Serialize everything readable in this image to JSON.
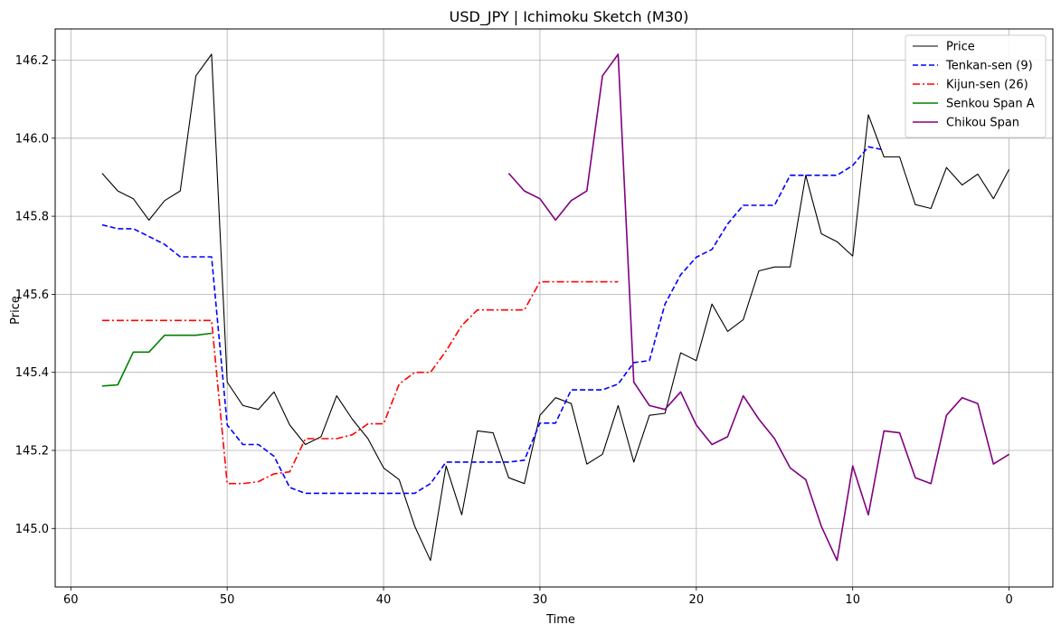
{
  "chart_data": {
    "type": "line",
    "title": "USD_JPY | Ichimoku Sketch (M30)",
    "xlabel": "Time",
    "ylabel": "Price",
    "xlim": [
      61,
      -2.8
    ],
    "ylim": [
      144.85,
      146.28
    ],
    "x_reversed": true,
    "grid": true,
    "legend_position": "top-right",
    "x_ticks": [
      60,
      50,
      40,
      30,
      20,
      10,
      0
    ],
    "y_ticks": [
      145.0,
      145.2,
      145.4,
      145.6,
      145.8,
      146.0,
      146.2
    ],
    "series": [
      {
        "name": "Price",
        "color": "#000000",
        "dash": "solid",
        "x": [
          58,
          57,
          56,
          55,
          54,
          53,
          52,
          51,
          50,
          49,
          48,
          47,
          46,
          45,
          44,
          43,
          42,
          41,
          40,
          39,
          38,
          37,
          36,
          35,
          34,
          33,
          32,
          31,
          30,
          29,
          28,
          27,
          26,
          25,
          24,
          23,
          22,
          21,
          20,
          19,
          18,
          17,
          16,
          15,
          14,
          13,
          12,
          11,
          10,
          9,
          8,
          7,
          6,
          5,
          4,
          3,
          2,
          1,
          0
        ],
        "values": [
          145.91,
          145.865,
          145.845,
          145.79,
          145.84,
          145.865,
          146.16,
          146.215,
          145.375,
          145.315,
          145.305,
          145.35,
          145.265,
          145.215,
          145.235,
          145.34,
          145.28,
          145.23,
          145.155,
          145.125,
          145.005,
          144.918,
          145.16,
          145.035,
          145.25,
          145.245,
          145.13,
          145.115,
          145.29,
          145.335,
          145.32,
          145.165,
          145.19,
          145.315,
          145.17,
          145.29,
          145.295,
          145.45,
          145.43,
          145.575,
          145.505,
          145.535,
          145.66,
          145.67,
          145.67,
          145.905,
          145.755,
          145.735,
          145.698,
          146.06,
          145.952,
          145.952,
          145.83,
          145.82,
          145.925,
          145.88,
          145.908,
          145.845,
          145.92
        ]
      },
      {
        "name": "Tenkan-sen (9)",
        "color": "#0000ff",
        "dash": "dashed",
        "x": [
          58,
          57,
          56,
          55,
          54,
          53,
          52,
          51,
          50,
          49,
          48,
          47,
          46,
          45,
          44,
          43,
          42,
          41,
          40,
          39,
          38,
          37,
          36,
          35,
          34,
          33,
          32,
          31,
          30,
          29,
          28,
          27,
          26,
          25,
          24,
          23,
          22,
          21,
          20,
          19,
          18,
          17,
          16,
          15,
          14,
          13,
          12,
          11,
          10,
          9,
          8
        ],
        "values": [
          145.778,
          145.768,
          145.768,
          145.748,
          145.728,
          145.696,
          145.696,
          145.696,
          145.265,
          145.215,
          145.215,
          145.185,
          145.105,
          145.09,
          145.09,
          145.09,
          145.09,
          145.09,
          145.09,
          145.09,
          145.09,
          145.115,
          145.17,
          145.17,
          145.17,
          145.17,
          145.17,
          145.175,
          145.27,
          145.27,
          145.355,
          145.355,
          145.355,
          145.37,
          145.425,
          145.43,
          145.575,
          145.65,
          145.695,
          145.715,
          145.78,
          145.828,
          145.828,
          145.828,
          145.905,
          145.905,
          145.905,
          145.905,
          145.93,
          145.978,
          145.97
        ]
      },
      {
        "name": "Kijun-sen (26)",
        "color": "#ff0000",
        "dash": "dashdot",
        "x": [
          58,
          57,
          56,
          55,
          54,
          53,
          52,
          51,
          50,
          49,
          48,
          47,
          46,
          45,
          44,
          43,
          42,
          41,
          40,
          39,
          38,
          37,
          36,
          35,
          34,
          33,
          32,
          31,
          30,
          29,
          28,
          27,
          26,
          25
        ],
        "values": [
          145.533,
          145.533,
          145.533,
          145.533,
          145.533,
          145.533,
          145.533,
          145.533,
          145.115,
          145.115,
          145.12,
          145.14,
          145.145,
          145.23,
          145.23,
          145.23,
          145.24,
          145.268,
          145.268,
          145.37,
          145.4,
          145.4,
          145.455,
          145.52,
          145.56,
          145.56,
          145.56,
          145.56,
          145.632,
          145.632,
          145.632,
          145.632,
          145.632,
          145.632
        ]
      },
      {
        "name": "Senkou Span A",
        "color": "#008000",
        "dash": "solid",
        "x": [
          58,
          57,
          56,
          55,
          54,
          53,
          52,
          51
        ],
        "values": [
          145.365,
          145.368,
          145.452,
          145.452,
          145.495,
          145.495,
          145.495,
          145.5
        ]
      },
      {
        "name": "Chikou Span",
        "color": "#800080",
        "dash": "solid",
        "x": [
          32,
          31,
          30,
          29,
          28,
          27,
          26,
          25,
          24,
          23,
          22,
          21,
          20,
          19,
          18,
          17,
          16,
          15,
          14,
          13,
          12,
          11,
          10,
          9,
          8,
          7,
          6,
          5,
          4,
          3,
          2,
          1,
          0
        ],
        "values": [
          145.91,
          145.865,
          145.845,
          145.79,
          145.84,
          145.865,
          146.16,
          146.215,
          145.375,
          145.315,
          145.305,
          145.35,
          145.265,
          145.215,
          145.235,
          145.34,
          145.28,
          145.23,
          145.155,
          145.125,
          145.005,
          144.918,
          145.16,
          145.035,
          145.25,
          145.245,
          145.13,
          145.115,
          145.29,
          145.335,
          145.32,
          145.165,
          145.19
        ]
      }
    ]
  }
}
